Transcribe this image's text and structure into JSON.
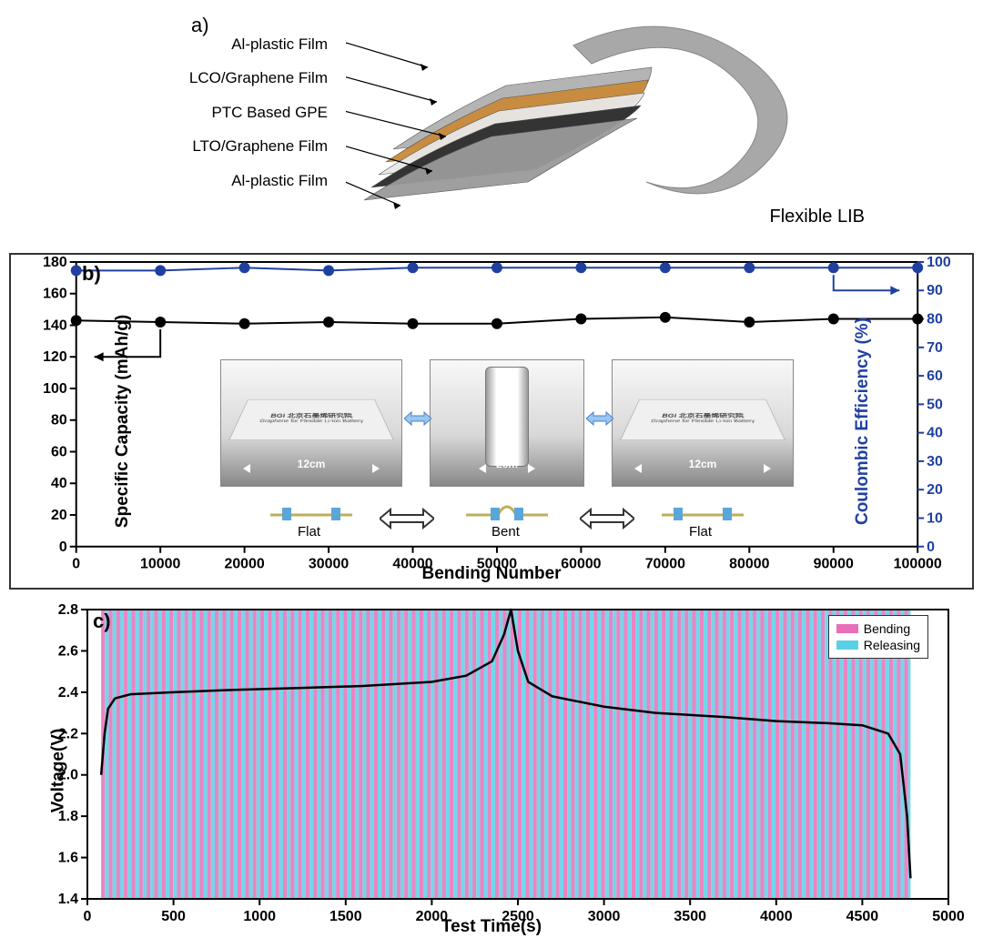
{
  "panel_a": {
    "label": "a)",
    "layers": [
      "Al-plastic Film",
      "LCO/Graphene Film",
      "PTC Based GPE",
      "LTO/Graphene Film",
      "Al-plastic Film"
    ],
    "layer_colors": [
      "#9a9a9a",
      "#2a2a2a",
      "#e8e8e8",
      "#c88a3a",
      "#b0b0b0"
    ],
    "caption": "Flexible LIB"
  },
  "panel_b": {
    "type": "dual-axis scatter+line",
    "label": "b)",
    "xlabel": "Bending Number",
    "ylabel_left": "Specific Capacity (mAh/g)",
    "ylabel_right": "Coulombic Efficiency (%)",
    "xlim": [
      0,
      100000
    ],
    "xtick_step": 10000,
    "ylim_left": [
      0,
      180
    ],
    "ytick_left_step": 20,
    "ylim_right": [
      0,
      100
    ],
    "ytick_right_step": 10,
    "x": [
      0,
      10000,
      20000,
      30000,
      40000,
      50000,
      60000,
      70000,
      80000,
      90000,
      100000
    ],
    "capacity": [
      143,
      142,
      141,
      142,
      141,
      141,
      144,
      145,
      142,
      144,
      144
    ],
    "efficiency": [
      97,
      97,
      98,
      97,
      98,
      98,
      98,
      98,
      98,
      98,
      98
    ],
    "capacity_color": "#000000",
    "efficiency_color": "#2040a0",
    "marker_radius": 6,
    "line_width": 2,
    "insets": [
      {
        "state": "Flat",
        "dim_label": "12cm",
        "logo_text": "BGi 北京石墨烯研究院",
        "sub_text": "Graphene for Flexible Li-Ion Battery"
      },
      {
        "state": "Bent",
        "dim_label": "2cm"
      },
      {
        "state": "Flat",
        "dim_label": "12cm",
        "logo_text": "BGi 北京石墨烯研究院",
        "sub_text": "Graphene for Flexible Li-Ion Battery"
      }
    ],
    "state_order": [
      "Flat",
      "Bent",
      "Flat"
    ]
  },
  "panel_c": {
    "type": "line over striped background",
    "label": "c)",
    "xlabel": "Test Time(s)",
    "ylabel": "Voltage(V)",
    "xlim": [
      0,
      5000
    ],
    "xtick_step": 500,
    "ylim": [
      1.4,
      2.8
    ],
    "ytick_step": 0.2,
    "line_color": "#000000",
    "line_width": 2.5,
    "stripe_colors": {
      "Bending": "#e86fb8",
      "Releasing": "#5ad0e6"
    },
    "stripe_range_s": [
      80,
      4780
    ],
    "stripe_period_s": 44,
    "legend": [
      {
        "label": "Bending",
        "color": "#e86fb8"
      },
      {
        "label": "Releasing",
        "color": "#5ad0e6"
      }
    ],
    "voltage_curve": [
      [
        80,
        2.0
      ],
      [
        100,
        2.2
      ],
      [
        120,
        2.32
      ],
      [
        160,
        2.37
      ],
      [
        250,
        2.39
      ],
      [
        500,
        2.4
      ],
      [
        800,
        2.41
      ],
      [
        1200,
        2.42
      ],
      [
        1600,
        2.43
      ],
      [
        2000,
        2.45
      ],
      [
        2200,
        2.48
      ],
      [
        2350,
        2.55
      ],
      [
        2420,
        2.68
      ],
      [
        2460,
        2.8
      ],
      [
        2500,
        2.6
      ],
      [
        2560,
        2.45
      ],
      [
        2700,
        2.38
      ],
      [
        3000,
        2.33
      ],
      [
        3300,
        2.3
      ],
      [
        3700,
        2.28
      ],
      [
        4000,
        2.26
      ],
      [
        4300,
        2.25
      ],
      [
        4500,
        2.24
      ],
      [
        4650,
        2.2
      ],
      [
        4720,
        2.1
      ],
      [
        4760,
        1.8
      ],
      [
        4780,
        1.5
      ]
    ]
  }
}
